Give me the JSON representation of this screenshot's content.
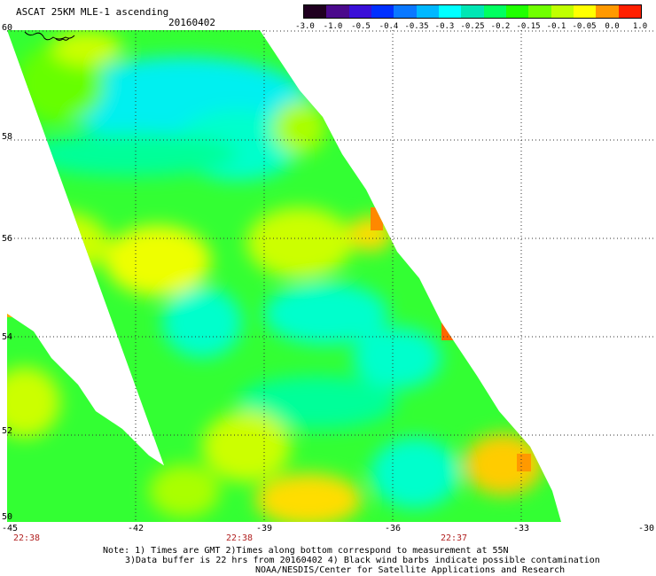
{
  "header": {
    "title": "ASCAT 25KM MLE-1 ascending",
    "date": "20160402"
  },
  "colorbar": {
    "colors": [
      "#200020",
      "#4b0a8c",
      "#3a10d8",
      "#0030ff",
      "#0a78ff",
      "#00b8ff",
      "#00ffff",
      "#00e6b4",
      "#00ff60",
      "#20ff00",
      "#70ff00",
      "#c0ff00",
      "#ffff00",
      "#ff9900",
      "#ff2000"
    ],
    "labels": [
      "-3.0",
      "-1.0",
      "-0.5",
      "-0.4",
      "-0.35",
      "-0.3",
      "-0.25",
      "-0.2",
      "-0.15",
      "-0.1",
      "-0.05",
      "0.0",
      "1.0"
    ]
  },
  "map": {
    "lat_labels": [
      "60",
      "58",
      "56",
      "54",
      "52",
      "50"
    ],
    "lon_labels": [
      "-45",
      "-42",
      "-39",
      "-36",
      "-33",
      "-30"
    ],
    "time_labels": [
      "22:38",
      "22:38",
      "22:37"
    ],
    "lat_range": [
      50,
      60
    ],
    "lon_range": [
      -45,
      -30
    ]
  },
  "notes": {
    "line1": "Note: 1) Times are GMT 2)Times along bottom correspond to measurement at 55N",
    "line2": "3)Data buffer is 22 hrs from 20160402 4) Black wind barbs indicate possible contamination",
    "line3": "NOAA/NESDIS/Center for Satellite Applications and Research"
  }
}
